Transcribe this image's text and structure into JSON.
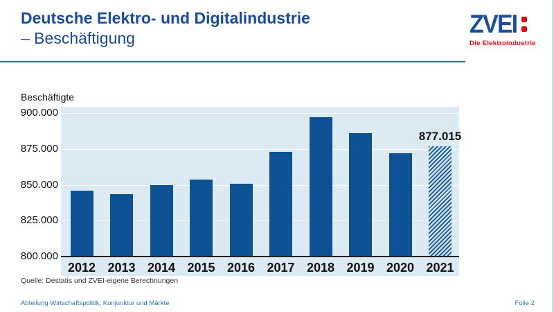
{
  "header": {
    "title_line1": "Deutsche Elektro- und Digitalindustrie",
    "title_line2": "– Beschäftigung",
    "logo": {
      "brand": "ZVEI",
      "tagline": "Die Elektroindustrie"
    }
  },
  "source": "Quelle: Destatis und ZVEI-eigene Berechnungen",
  "footer": {
    "left": "Abteilung Wirtschaftspolitik, Konjunktur und Märkte",
    "right": "Folie 2"
  },
  "colors": {
    "title_blue": "#1a4a9e",
    "rule_blue": "#1e6a99",
    "logo_blue": "#1b4f9e",
    "logo_red": "#e30613",
    "bar_blue": "#0d5294",
    "plot_bg": "#dcebf3",
    "footer_blue": "#2878a8"
  },
  "chart_data": {
    "type": "bar",
    "title": "",
    "ylabel": "Beschäftigte",
    "xlabel": "",
    "ylim": [
      800000,
      900000
    ],
    "grid": true,
    "legend": "none",
    "yticks": [
      {
        "label": "900.000",
        "value": 900000
      },
      {
        "label": "875.000",
        "value": 875000
      },
      {
        "label": "850.000",
        "value": 850000
      },
      {
        "label": "825.000",
        "value": 825000
      },
      {
        "label": "800.000",
        "value": 800000
      }
    ],
    "categories": [
      "2012",
      "2013",
      "2014",
      "2015",
      "2016",
      "2017",
      "2018",
      "2019",
      "2020",
      "2021"
    ],
    "bars": [
      {
        "year": "2012",
        "value": 846000,
        "pattern": "solid"
      },
      {
        "year": "2013",
        "value": 843500,
        "pattern": "solid"
      },
      {
        "year": "2014",
        "value": 850000,
        "pattern": "solid"
      },
      {
        "year": "2015",
        "value": 853500,
        "pattern": "solid"
      },
      {
        "year": "2016",
        "value": 851000,
        "pattern": "solid"
      },
      {
        "year": "2017",
        "value": 873000,
        "pattern": "solid"
      },
      {
        "year": "2018",
        "value": 897000,
        "pattern": "solid"
      },
      {
        "year": "2019",
        "value": 886000,
        "pattern": "solid"
      },
      {
        "year": "2020",
        "value": 872000,
        "pattern": "solid"
      },
      {
        "year": "2021",
        "value": 877015,
        "pattern": "hatched",
        "label": "877.015"
      }
    ]
  }
}
